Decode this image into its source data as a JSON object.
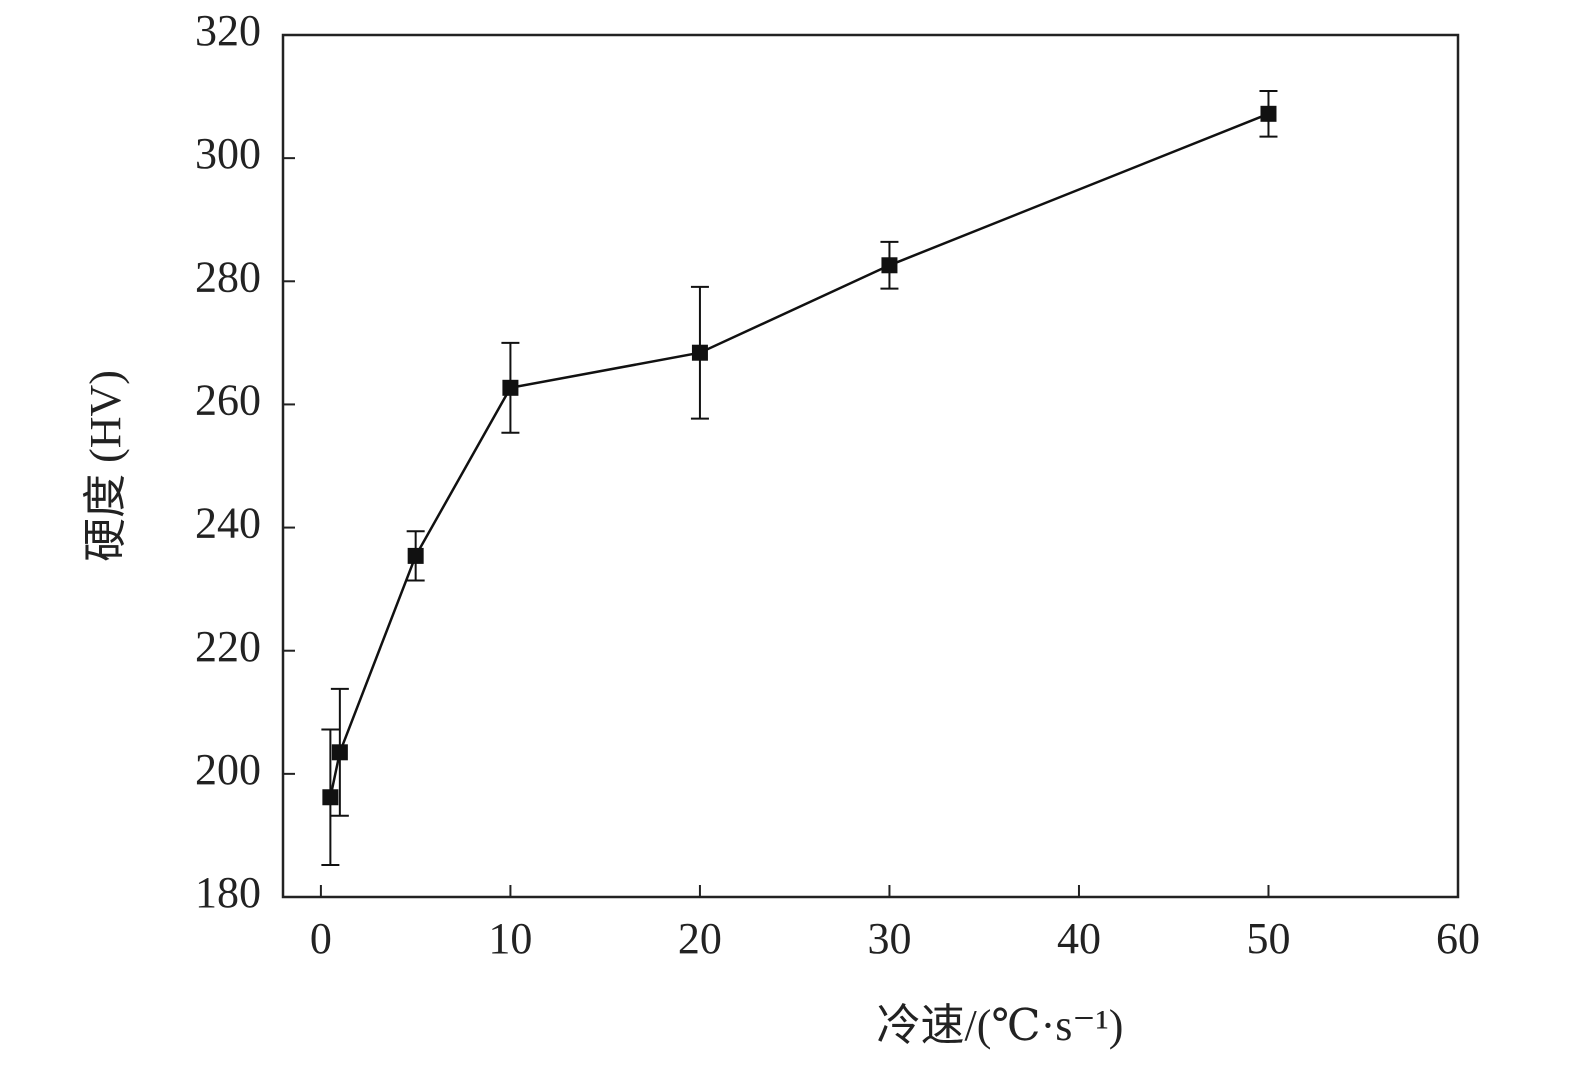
{
  "chart_data": {
    "type": "line",
    "x_label": "冷速/(℃·s⁻¹)",
    "y_label": "硬度 (HV)",
    "series": [
      {
        "name": "硬度",
        "color": "#111111",
        "x": [
          0.5,
          1,
          5,
          10,
          20,
          30,
          50
        ],
        "values": [
          196.2,
          203.5,
          235.4,
          262.7,
          268.4,
          282.6,
          307.2
        ],
        "errors": [
          11,
          10.3,
          4,
          7.3,
          10.7,
          3.8,
          3.7
        ]
      }
    ],
    "xlim": [
      -2,
      60
    ],
    "xticks": [
      0,
      10,
      20,
      30,
      40,
      50,
      60
    ],
    "ylim": [
      180,
      320
    ],
    "yticks": [
      180,
      200,
      220,
      240,
      260,
      280,
      300,
      320
    ],
    "grid": false
  }
}
